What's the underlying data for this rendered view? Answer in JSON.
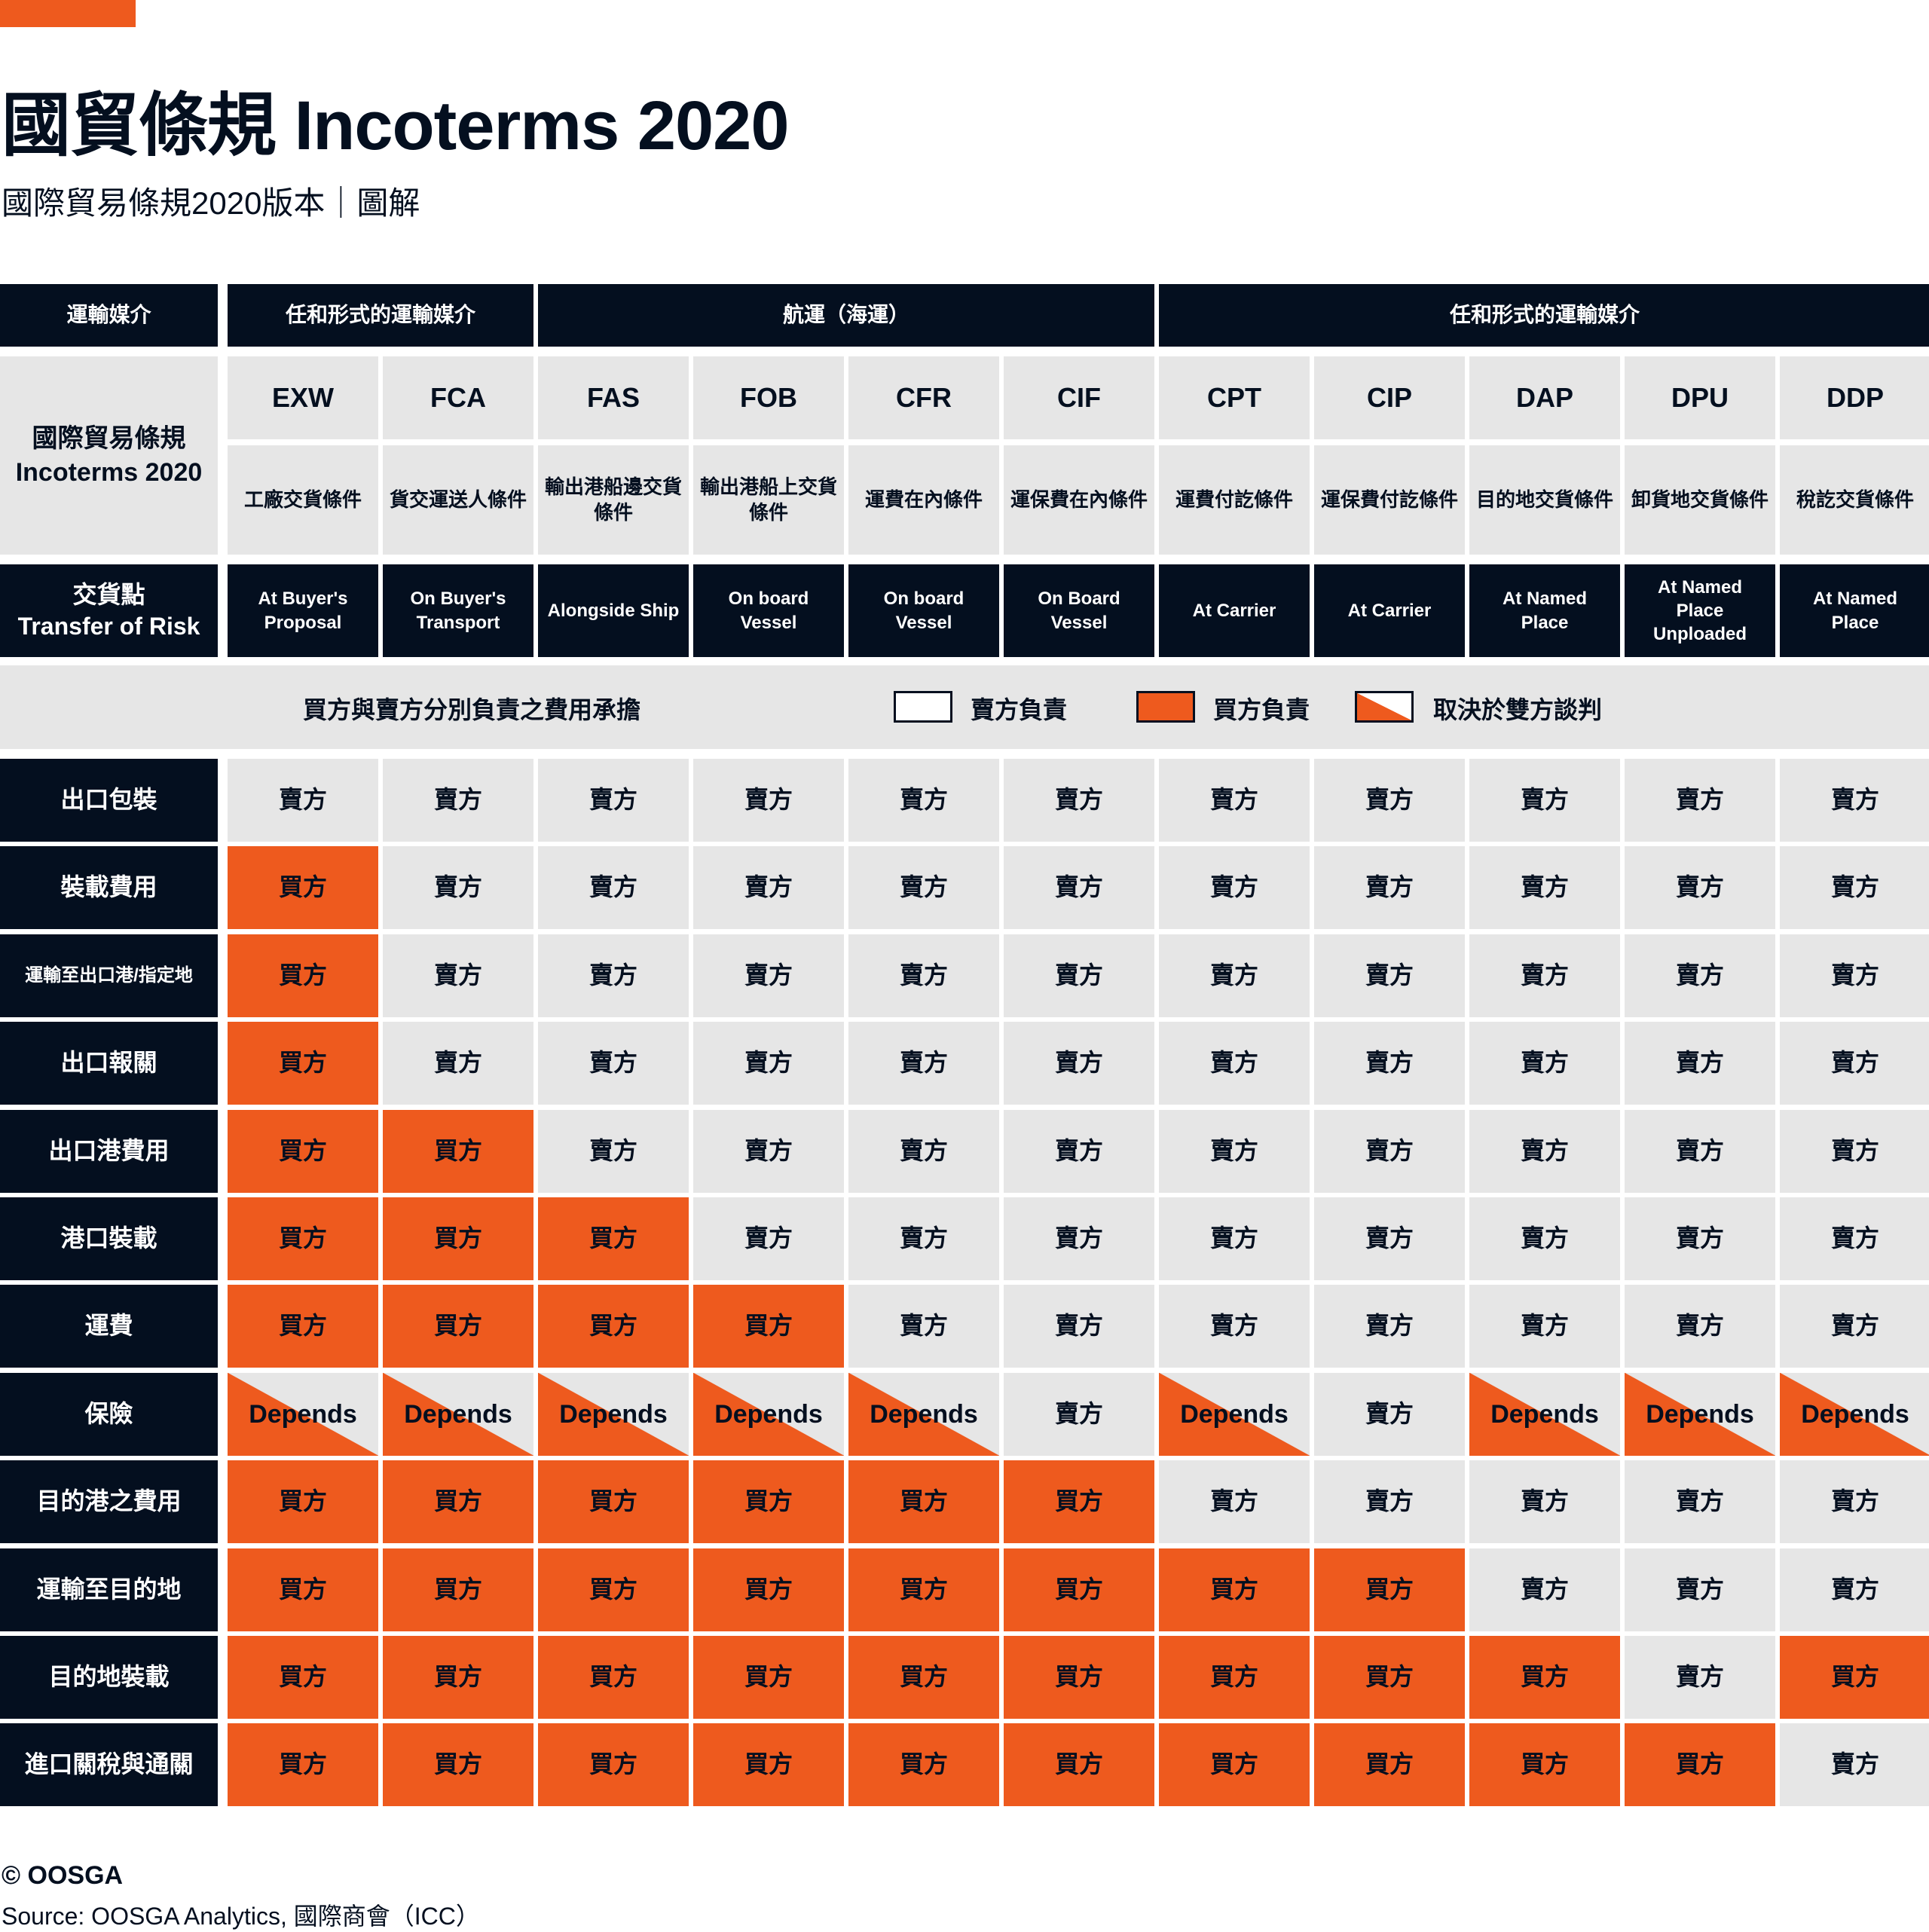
{
  "title": "國貿條規 Incoterms 2020",
  "subtitle": "國際貿易條規2020版本｜圖解",
  "colors": {
    "navy": "#040f1f",
    "orange": "#ee5a1e",
    "gray": "#e6e6e6"
  },
  "header": {
    "transport_label": "運輸媒介",
    "groups": [
      {
        "label": "任和形式的運輸媒介",
        "span": 2
      },
      {
        "label": "航運（海運）",
        "span": 4
      },
      {
        "label": "任和形式的運輸媒介",
        "span": 5
      }
    ],
    "incoterms_label_cn": "國際貿易條規",
    "incoterms_label_en": "Incoterms 2020",
    "risk_label_cn": "交貨點",
    "risk_label_en": "Transfer of Risk",
    "terms": [
      {
        "code": "EXW",
        "name": "工廠交貨條件",
        "risk": "At Buyer's Proposal"
      },
      {
        "code": "FCA",
        "name": "貨交運送人條件",
        "risk": "On Buyer's Transport"
      },
      {
        "code": "FAS",
        "name": "輸出港船邊交貨條件",
        "risk": "Alongside Ship"
      },
      {
        "code": "FOB",
        "name": "輸出港船上交貨條件",
        "risk": "On board Vessel"
      },
      {
        "code": "CFR",
        "name": "運費在內條件",
        "risk": "On board Vessel"
      },
      {
        "code": "CIF",
        "name": "運保費在內條件",
        "risk": "On Board Vessel"
      },
      {
        "code": "CPT",
        "name": "運費付訖條件",
        "risk": "At Carrier"
      },
      {
        "code": "CIP",
        "name": "運保費付訖條件",
        "risk": "At Carrier"
      },
      {
        "code": "DAP",
        "name": "目的地交貨條件",
        "risk": "At Named Place"
      },
      {
        "code": "DPU",
        "name": "卸貨地交貨條件",
        "risk": "At Named Place Unploaded"
      },
      {
        "code": "DDP",
        "name": "稅訖交貨條件",
        "risk": "At Named Place"
      }
    ]
  },
  "legend": {
    "title": "買方與賣方分別負責之費用承擔",
    "seller": "賣方負責",
    "buyer": "買方負責",
    "depends": "取決於雙方談判"
  },
  "values": {
    "S": "賣方",
    "B": "買方",
    "D": "Depends"
  },
  "rows": [
    {
      "label": "出口包裝",
      "cells": [
        "S",
        "S",
        "S",
        "S",
        "S",
        "S",
        "S",
        "S",
        "S",
        "S",
        "S"
      ]
    },
    {
      "label": "裝載費用",
      "cells": [
        "B",
        "S",
        "S",
        "S",
        "S",
        "S",
        "S",
        "S",
        "S",
        "S",
        "S"
      ]
    },
    {
      "label": "運輸至出口港/指定地",
      "cells": [
        "B",
        "S",
        "S",
        "S",
        "S",
        "S",
        "S",
        "S",
        "S",
        "S",
        "S"
      ]
    },
    {
      "label": "出口報關",
      "cells": [
        "B",
        "S",
        "S",
        "S",
        "S",
        "S",
        "S",
        "S",
        "S",
        "S",
        "S"
      ]
    },
    {
      "label": "出口港費用",
      "cells": [
        "B",
        "B",
        "S",
        "S",
        "S",
        "S",
        "S",
        "S",
        "S",
        "S",
        "S"
      ]
    },
    {
      "label": "港口裝載",
      "cells": [
        "B",
        "B",
        "B",
        "S",
        "S",
        "S",
        "S",
        "S",
        "S",
        "S",
        "S"
      ]
    },
    {
      "label": "運費",
      "cells": [
        "B",
        "B",
        "B",
        "B",
        "S",
        "S",
        "S",
        "S",
        "S",
        "S",
        "S"
      ]
    },
    {
      "label": "保險",
      "cells": [
        "D",
        "D",
        "D",
        "D",
        "D",
        "S",
        "D",
        "S",
        "D",
        "D",
        "D"
      ]
    },
    {
      "label": "目的港之費用",
      "cells": [
        "B",
        "B",
        "B",
        "B",
        "B",
        "B",
        "S",
        "S",
        "S",
        "S",
        "S"
      ]
    },
    {
      "label": "運輸至目的地",
      "cells": [
        "B",
        "B",
        "B",
        "B",
        "B",
        "B",
        "B",
        "B",
        "S",
        "S",
        "S"
      ]
    },
    {
      "label": "目的地裝載",
      "cells": [
        "B",
        "B",
        "B",
        "B",
        "B",
        "B",
        "B",
        "B",
        "B",
        "S",
        "B"
      ]
    },
    {
      "label": "進口關稅與通關",
      "cells": [
        "B",
        "B",
        "B",
        "B",
        "B",
        "B",
        "B",
        "B",
        "B",
        "B",
        "S"
      ]
    }
  ],
  "footer": {
    "copyright": "© OOSGA",
    "source": "Source: OOSGA Analytics, 國際商會（ICC）"
  }
}
